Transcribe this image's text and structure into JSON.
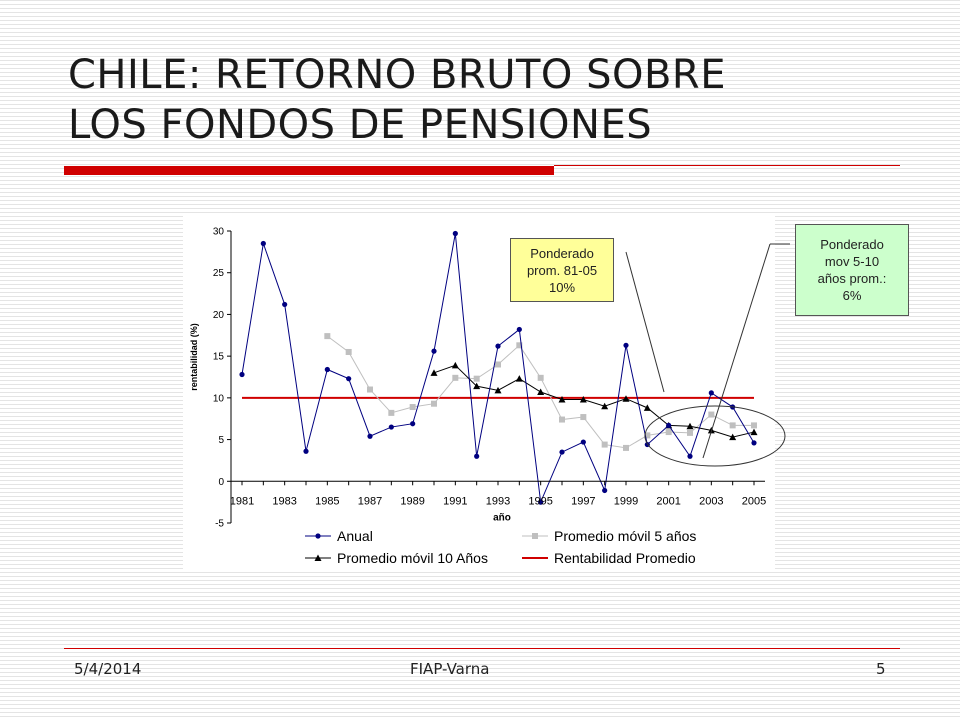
{
  "slide": {
    "title_line1": "CHILE: RETORNO BRUTO SOBRE",
    "title_line2": "LOS FONDOS DE PENSIONES",
    "footer_date": "5/4/2014",
    "footer_center": "FIAP-Varna",
    "footer_page": "5",
    "accent_color": "#d00000"
  },
  "callouts": {
    "ponderado_prom": "Ponderado\nprom. 81-05\n10%",
    "ponderado_mov": "Ponderado\nmov 5-10\naños prom.:\n6%"
  },
  "chart_data": {
    "type": "line",
    "title": "",
    "xlabel": "año",
    "ylabel": "rentabilidad (%)",
    "ylim": [
      -5,
      30
    ],
    "yticks": [
      -5,
      0,
      5,
      10,
      15,
      20,
      25,
      30
    ],
    "xlim": [
      1981,
      2005
    ],
    "xtick_labels": [
      "1981",
      "1983",
      "1985",
      "1987",
      "1989",
      "1991",
      "1993",
      "1995",
      "1997",
      "1999",
      "2001",
      "2003",
      "2005"
    ],
    "legend_position": "bottom",
    "series": [
      {
        "name": "Anual",
        "color": "#000080",
        "marker": "circle",
        "x": [
          1981,
          1982,
          1983,
          1984,
          1985,
          1986,
          1987,
          1988,
          1989,
          1990,
          1991,
          1992,
          1993,
          1994,
          1995,
          1996,
          1997,
          1998,
          1999,
          2000,
          2001,
          2002,
          2003,
          2004,
          2005
        ],
        "values": [
          12.8,
          28.5,
          21.2,
          3.6,
          13.4,
          12.3,
          5.4,
          6.5,
          6.9,
          15.6,
          29.7,
          3.0,
          16.2,
          18.2,
          -2.5,
          3.5,
          4.7,
          -1.1,
          16.3,
          4.4,
          6.7,
          3.0,
          10.6,
          8.9,
          4.6
        ]
      },
      {
        "name": "Promedio móvil 5 años",
        "color": "#bfbfbf",
        "marker": "square",
        "x": [
          1985,
          1986,
          1987,
          1988,
          1989,
          1990,
          1991,
          1992,
          1993,
          1994,
          1995,
          1996,
          1997,
          1998,
          1999,
          2000,
          2001,
          2002,
          2003,
          2004,
          2005
        ],
        "values": [
          17.4,
          15.5,
          11.0,
          8.2,
          8.9,
          9.3,
          12.4,
          12.3,
          14.0,
          16.3,
          12.4,
          7.4,
          7.7,
          4.4,
          4.0,
          5.5,
          5.9,
          5.8,
          8.0,
          6.7,
          6.7
        ]
      },
      {
        "name": "Promedio móvil 10 Años",
        "color": "#000000",
        "marker": "triangle",
        "x": [
          1990,
          1991,
          1992,
          1993,
          1994,
          1995,
          1996,
          1997,
          1998,
          1999,
          2000,
          2001,
          2002,
          2003,
          2004,
          2005
        ],
        "values": [
          13.0,
          13.9,
          11.4,
          10.9,
          12.3,
          10.7,
          9.8,
          9.8,
          9.0,
          9.9,
          8.8,
          6.7,
          6.6,
          6.1,
          5.3,
          5.9
        ]
      },
      {
        "name": "Rentabilidad Promedio",
        "color": "#d00000",
        "marker": "none",
        "x": [
          1981,
          2005
        ],
        "values": [
          10,
          10
        ]
      }
    ]
  }
}
